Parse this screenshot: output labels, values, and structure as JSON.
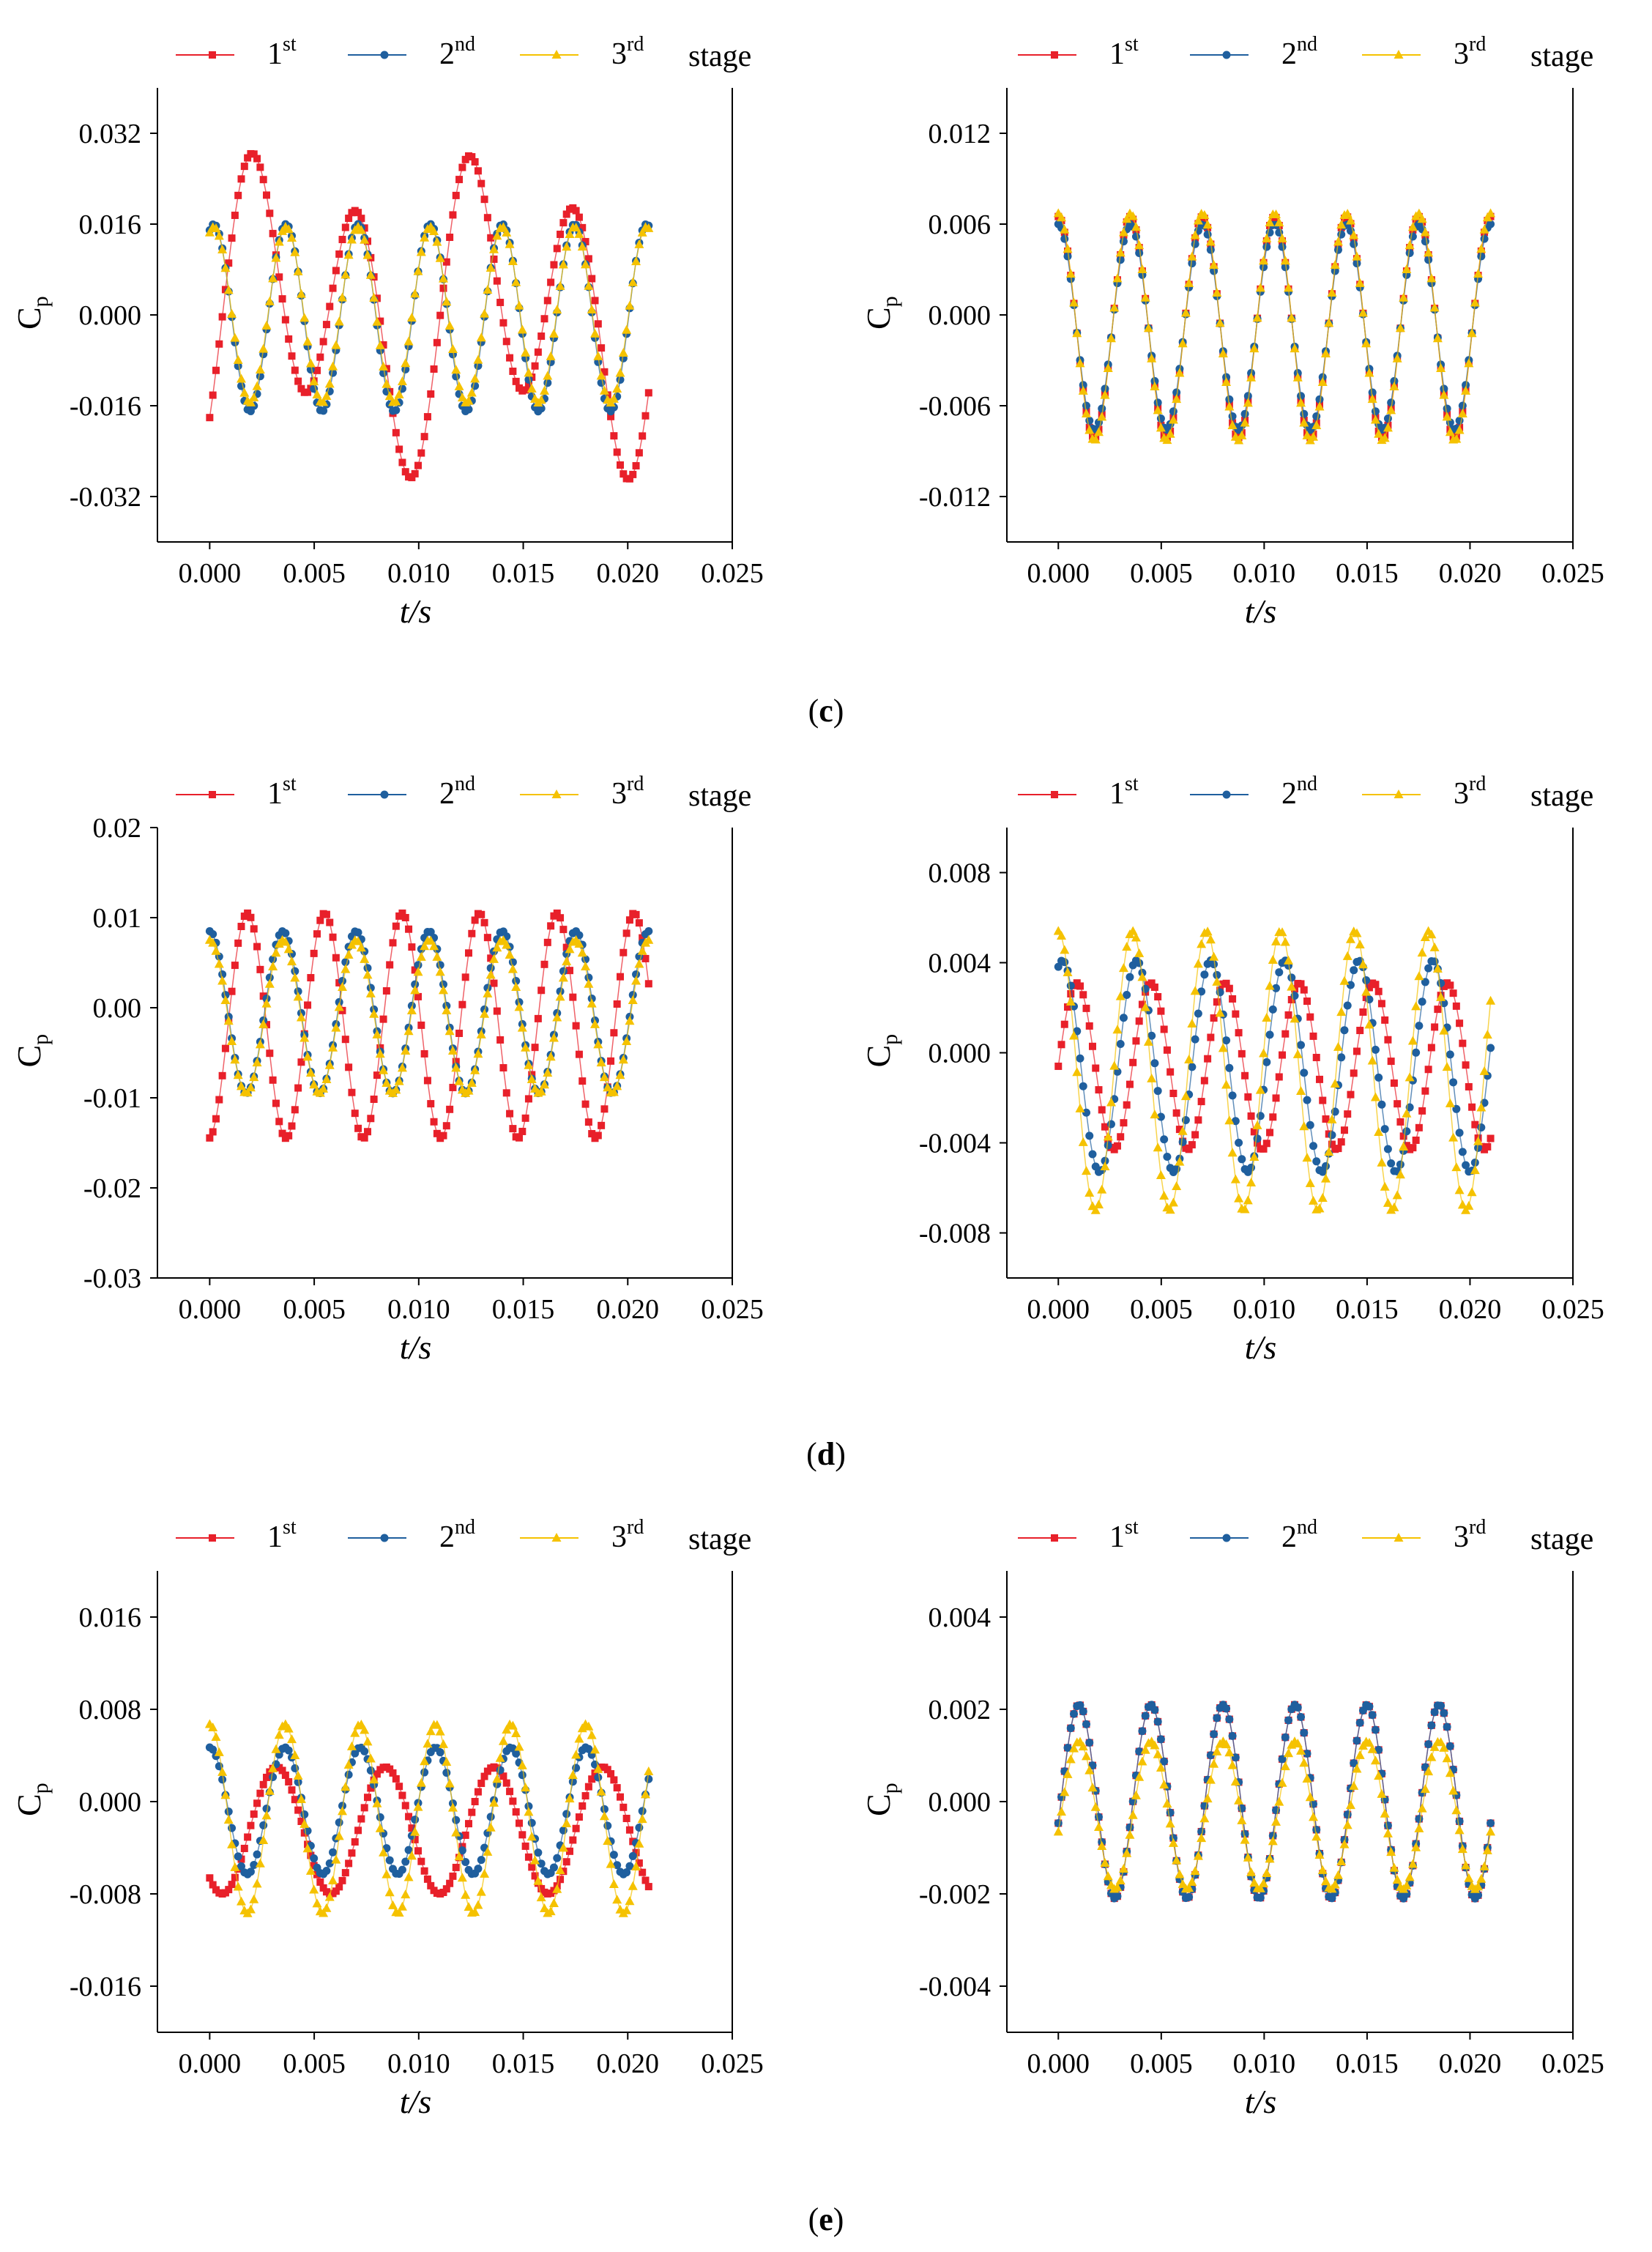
{
  "colors": {
    "s1": "#e8202a",
    "s2": "#1f5f9e",
    "s3": "#f5c200"
  },
  "legend_suffix": "stage",
  "series": [
    {
      "key": "s1",
      "num": "1",
      "sup": "st",
      "marker": "square"
    },
    {
      "key": "s2",
      "num": "2",
      "sup": "nd",
      "marker": "circle"
    },
    {
      "key": "s3",
      "num": "3",
      "sup": "rd",
      "marker": "triangle"
    }
  ],
  "captions": [
    {
      "row": 0,
      "prefix": "(",
      "letter": "c",
      "suffix": ")"
    },
    {
      "row": 1,
      "prefix": "(",
      "letter": "d",
      "suffix": ")"
    },
    {
      "row": 2,
      "prefix": "(",
      "letter": "e",
      "suffix": ")"
    }
  ],
  "chart_data": [
    {
      "type": "scatter",
      "panel": "c-left",
      "xlabel": "t/s",
      "ylabel": "C",
      "ylabel_sub": "p",
      "xlim": [
        -0.0025,
        0.025
      ],
      "xticks": [
        "0.000",
        "0.005",
        "0.010",
        "0.015",
        "0.020",
        "0.025"
      ],
      "ylim": [
        -0.04,
        0.04
      ],
      "yticks": [
        "-0.032",
        "-0.016",
        "0.000",
        "0.016",
        "0.032"
      ],
      "n_points": 140,
      "t_end": 0.021,
      "series": [
        {
          "key": "s1",
          "period": 0.0052,
          "amp": 0.022,
          "offset": 0.001,
          "phase": 0.0019,
          "amp2": 0.009,
          "period2": 0.0105,
          "phase2": 0.0035
        },
        {
          "key": "s2",
          "period": 0.00345,
          "amp": 0.0165,
          "offset": -0.0005,
          "phase": 0.0002
        },
        {
          "key": "s3",
          "period": 0.00345,
          "amp": 0.0155,
          "offset": 0.0,
          "phase": 0.0002
        }
      ]
    },
    {
      "type": "scatter",
      "panel": "c-right",
      "xlabel": "t/s",
      "ylabel": "C",
      "ylabel_sub": "p",
      "xlim": [
        -0.0025,
        0.025
      ],
      "xticks": [
        "0.000",
        "0.005",
        "0.010",
        "0.015",
        "0.020",
        "0.025"
      ],
      "ylim": [
        -0.015,
        0.015
      ],
      "yticks": [
        "-0.012",
        "-0.006",
        "0.000",
        "0.006",
        "0.012"
      ],
      "n_points": 140,
      "t_end": 0.021,
      "series": [
        {
          "key": "s1",
          "period": 0.0035,
          "amp": 0.0073,
          "offset": -0.0008,
          "phase": 0.0
        },
        {
          "key": "s2",
          "period": 0.0035,
          "amp": 0.0068,
          "offset": -0.0008,
          "phase": 0.0
        },
        {
          "key": "s3",
          "period": 0.0035,
          "amp": 0.0075,
          "offset": -0.0008,
          "phase": 0.0
        }
      ]
    },
    {
      "type": "scatter",
      "panel": "d-left",
      "xlabel": "t/s",
      "ylabel": "C",
      "ylabel_sub": "p",
      "xlim": [
        -0.0025,
        0.025
      ],
      "xticks": [
        "0.000",
        "0.005",
        "0.010",
        "0.015",
        "0.020",
        "0.025"
      ],
      "ylim": [
        -0.03,
        0.02
      ],
      "yticks": [
        "-0.03",
        "-0.02",
        "-0.01",
        "0.00",
        "0.01",
        "0.02"
      ],
      "n_points": 140,
      "t_end": 0.021,
      "series": [
        {
          "key": "s1",
          "period": 0.0037,
          "amp": 0.0125,
          "offset": -0.002,
          "phase": 0.0055
        },
        {
          "key": "s2",
          "period": 0.0035,
          "amp": 0.009,
          "offset": -0.0005,
          "phase": 0.0
        },
        {
          "key": "s3",
          "period": 0.0035,
          "amp": 0.0085,
          "offset": -0.001,
          "phase": 0.0
        }
      ]
    },
    {
      "type": "scatter",
      "panel": "d-right",
      "xlabel": "t/s",
      "ylabel": "C",
      "ylabel_sub": "p",
      "xlim": [
        -0.0025,
        0.025
      ],
      "xticks": [
        "0.000",
        "0.005",
        "0.010",
        "0.015",
        "0.020",
        "0.025"
      ],
      "ylim": [
        -0.01,
        0.01
      ],
      "yticks": [
        "-0.008",
        "-0.004",
        "0.000",
        "0.004",
        "0.008"
      ],
      "n_points": 140,
      "t_end": 0.021,
      "series": [
        {
          "key": "s1",
          "period": 0.0036,
          "amp": 0.0037,
          "offset": -0.0006,
          "phase": 0.0045
        },
        {
          "key": "s2",
          "period": 0.0036,
          "amp": 0.0047,
          "offset": -0.0006,
          "phase": 0.0002
        },
        {
          "key": "s3",
          "period": 0.0036,
          "amp": 0.0062,
          "offset": -0.0008,
          "phase": 0.0
        }
      ]
    },
    {
      "type": "scatter",
      "panel": "e-left",
      "xlabel": "t/s",
      "ylabel": "C",
      "ylabel_sub": "p",
      "xlim": [
        -0.0025,
        0.025
      ],
      "xticks": [
        "0.000",
        "0.005",
        "0.010",
        "0.015",
        "0.020",
        "0.025"
      ],
      "ylim": [
        -0.02,
        0.02
      ],
      "yticks": [
        "-0.016",
        "-0.008",
        "0.000",
        "0.008",
        "0.016"
      ],
      "n_points": 140,
      "t_end": 0.021,
      "series": [
        {
          "key": "s1",
          "period": 0.0052,
          "amp": 0.0055,
          "offset": -0.0025,
          "phase": 0.0032
        },
        {
          "key": "s2",
          "period": 0.0036,
          "amp": 0.0055,
          "offset": -0.0008,
          "phase": 0.0
        },
        {
          "key": "s3",
          "period": 0.0036,
          "amp": 0.0082,
          "offset": -0.0015,
          "phase": 0.0
        }
      ]
    },
    {
      "type": "scatter",
      "panel": "e-right",
      "xlabel": "t/s",
      "ylabel": "C",
      "ylabel_sub": "p",
      "xlim": [
        -0.0025,
        0.025
      ],
      "xticks": [
        "0.000",
        "0.005",
        "0.010",
        "0.015",
        "0.020",
        "0.025"
      ],
      "ylim": [
        -0.005,
        0.005
      ],
      "yticks": [
        "-0.004",
        "-0.002",
        "0.000",
        "0.002",
        "0.004"
      ],
      "n_points": 140,
      "t_end": 0.021,
      "series": [
        {
          "key": "s1",
          "period": 0.0035,
          "amp": 0.0021,
          "offset": 0.0,
          "phase": 0.0045
        },
        {
          "key": "s2",
          "period": 0.0035,
          "amp": 0.0021,
          "offset": 0.0,
          "phase": 0.0045
        },
        {
          "key": "s3",
          "period": 0.0035,
          "amp": 0.0016,
          "offset": -0.0003,
          "phase": 0.001
        }
      ]
    }
  ]
}
